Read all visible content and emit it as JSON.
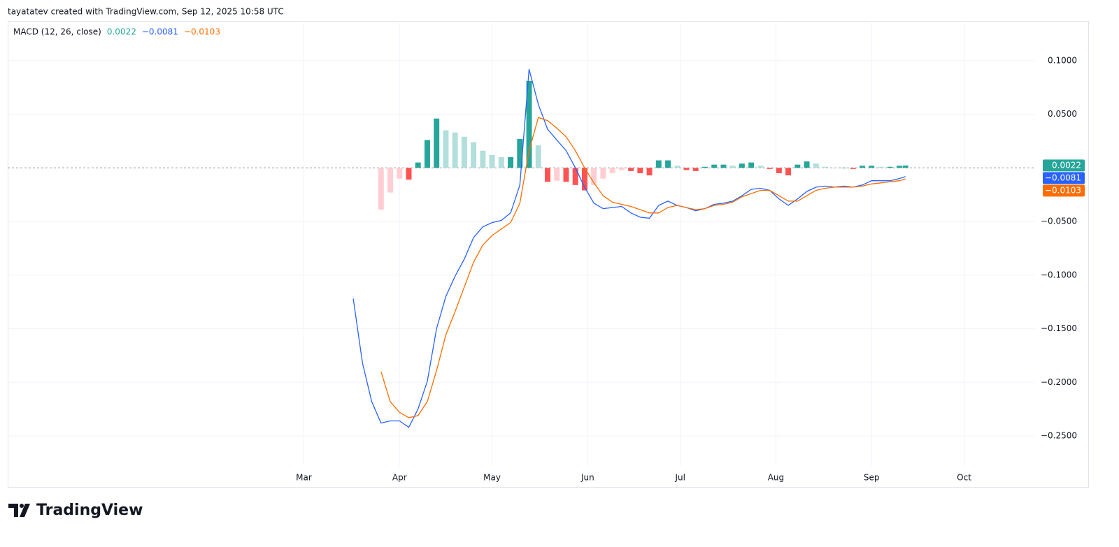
{
  "header": {
    "text": "tayatatev created with TradingView.com, Sep 12, 2025 10:58 UTC"
  },
  "footer": {
    "brand": "TradingView"
  },
  "chart_data": {
    "type": "macd",
    "title": "MACD (12, 26, close)",
    "x": [
      76,
      79,
      82,
      85,
      88,
      91,
      94,
      97,
      100,
      103,
      106,
      109,
      112,
      115,
      118,
      121,
      124,
      127,
      130,
      133,
      136,
      139,
      142,
      145,
      148,
      151,
      154,
      157,
      160,
      163,
      166,
      169,
      172,
      175,
      178,
      181,
      184,
      187,
      190,
      193,
      196,
      199,
      202,
      205,
      208,
      211,
      214,
      217,
      220,
      223,
      226,
      229,
      232,
      235,
      238,
      241,
      244,
      247,
      250,
      253,
      255
    ],
    "xlim": [
      -36,
      297
    ],
    "xticks": [
      {
        "value": 60,
        "label": "Mar"
      },
      {
        "value": 91,
        "label": "Apr"
      },
      {
        "value": 121,
        "label": "May"
      },
      {
        "value": 152,
        "label": "Jun"
      },
      {
        "value": 182,
        "label": "Jul"
      },
      {
        "value": 213,
        "label": "Aug"
      },
      {
        "value": 244,
        "label": "Sep"
      },
      {
        "value": 274,
        "label": "Oct"
      }
    ],
    "ylim": [
      -0.278,
      0.137
    ],
    "yticks": [
      {
        "value": 0.1,
        "label": "0.1000"
      },
      {
        "value": 0.05,
        "label": "0.0500"
      },
      {
        "value": -0.05,
        "label": "−0.0500"
      },
      {
        "value": -0.1,
        "label": "−0.1000"
      },
      {
        "value": -0.15,
        "label": "−0.1500"
      },
      {
        "value": -0.2,
        "label": "−0.2000"
      },
      {
        "value": -0.25,
        "label": "−0.2500"
      }
    ],
    "grid": true,
    "series": [
      {
        "kind": "histogram",
        "color": "#26a69a",
        "colors": [
          "#26a69a",
          "#b2dfdb",
          "#ffcdd2",
          "#ff5252"
        ],
        "last_value_label": "0.0022",
        "values": [
          null,
          null,
          null,
          -0.039,
          -0.023,
          -0.01,
          -0.011,
          0.005,
          0.026,
          0.046,
          0.035,
          0.033,
          0.029,
          0.024,
          0.016,
          0.012,
          0.01,
          0.01,
          0.027,
          0.081,
          0.021,
          -0.013,
          -0.012,
          -0.013,
          -0.016,
          -0.021,
          -0.016,
          -0.01,
          -0.005,
          -0.002,
          -0.003,
          -0.005,
          -0.007,
          0.007,
          0.007,
          0.002,
          -0.002,
          -0.003,
          0.001,
          0.003,
          0.003,
          0.002,
          0.004,
          0.005,
          0.002,
          -0.001,
          -0.005,
          -0.007,
          0.003,
          0.006,
          0.004,
          0.001,
          0.0,
          0.0,
          -0.001,
          0.002,
          0.002,
          0.001,
          0.001,
          0.002,
          0.0022
        ]
      },
      {
        "kind": "line",
        "color": "#2962ff",
        "last_value_label": "−0.0081",
        "values": [
          -0.122,
          -0.182,
          -0.218,
          -0.238,
          -0.236,
          -0.236,
          -0.242,
          -0.225,
          -0.199,
          -0.15,
          -0.12,
          -0.101,
          -0.085,
          -0.065,
          -0.055,
          -0.051,
          -0.049,
          -0.042,
          -0.016,
          0.092,
          0.059,
          0.036,
          0.026,
          0.016,
          0.0,
          -0.018,
          -0.033,
          -0.038,
          -0.037,
          -0.036,
          -0.042,
          -0.046,
          -0.047,
          -0.035,
          -0.031,
          -0.035,
          -0.037,
          -0.04,
          -0.038,
          -0.034,
          -0.033,
          -0.031,
          -0.026,
          -0.02,
          -0.019,
          -0.021,
          -0.029,
          -0.035,
          -0.029,
          -0.022,
          -0.018,
          -0.017,
          -0.018,
          -0.017,
          -0.018,
          -0.016,
          -0.012,
          -0.012,
          -0.012,
          -0.01,
          -0.0081
        ]
      },
      {
        "kind": "line",
        "color": "#ff6d00",
        "last_value_label": "−0.0103",
        "values": [
          null,
          null,
          null,
          -0.19,
          -0.218,
          -0.228,
          -0.233,
          -0.231,
          -0.218,
          -0.189,
          -0.156,
          -0.134,
          -0.111,
          -0.088,
          -0.072,
          -0.063,
          -0.057,
          -0.051,
          -0.033,
          0.016,
          0.047,
          0.044,
          0.037,
          0.029,
          0.016,
          0.0,
          -0.014,
          -0.026,
          -0.032,
          -0.034,
          -0.036,
          -0.039,
          -0.042,
          -0.042,
          -0.037,
          -0.035,
          -0.037,
          -0.039,
          -0.038,
          -0.035,
          -0.034,
          -0.032,
          -0.027,
          -0.024,
          -0.021,
          -0.021,
          -0.026,
          -0.031,
          -0.031,
          -0.026,
          -0.021,
          -0.019,
          -0.018,
          -0.018,
          -0.018,
          -0.017,
          -0.015,
          -0.014,
          -0.013,
          -0.012,
          -0.0103
        ]
      }
    ]
  }
}
